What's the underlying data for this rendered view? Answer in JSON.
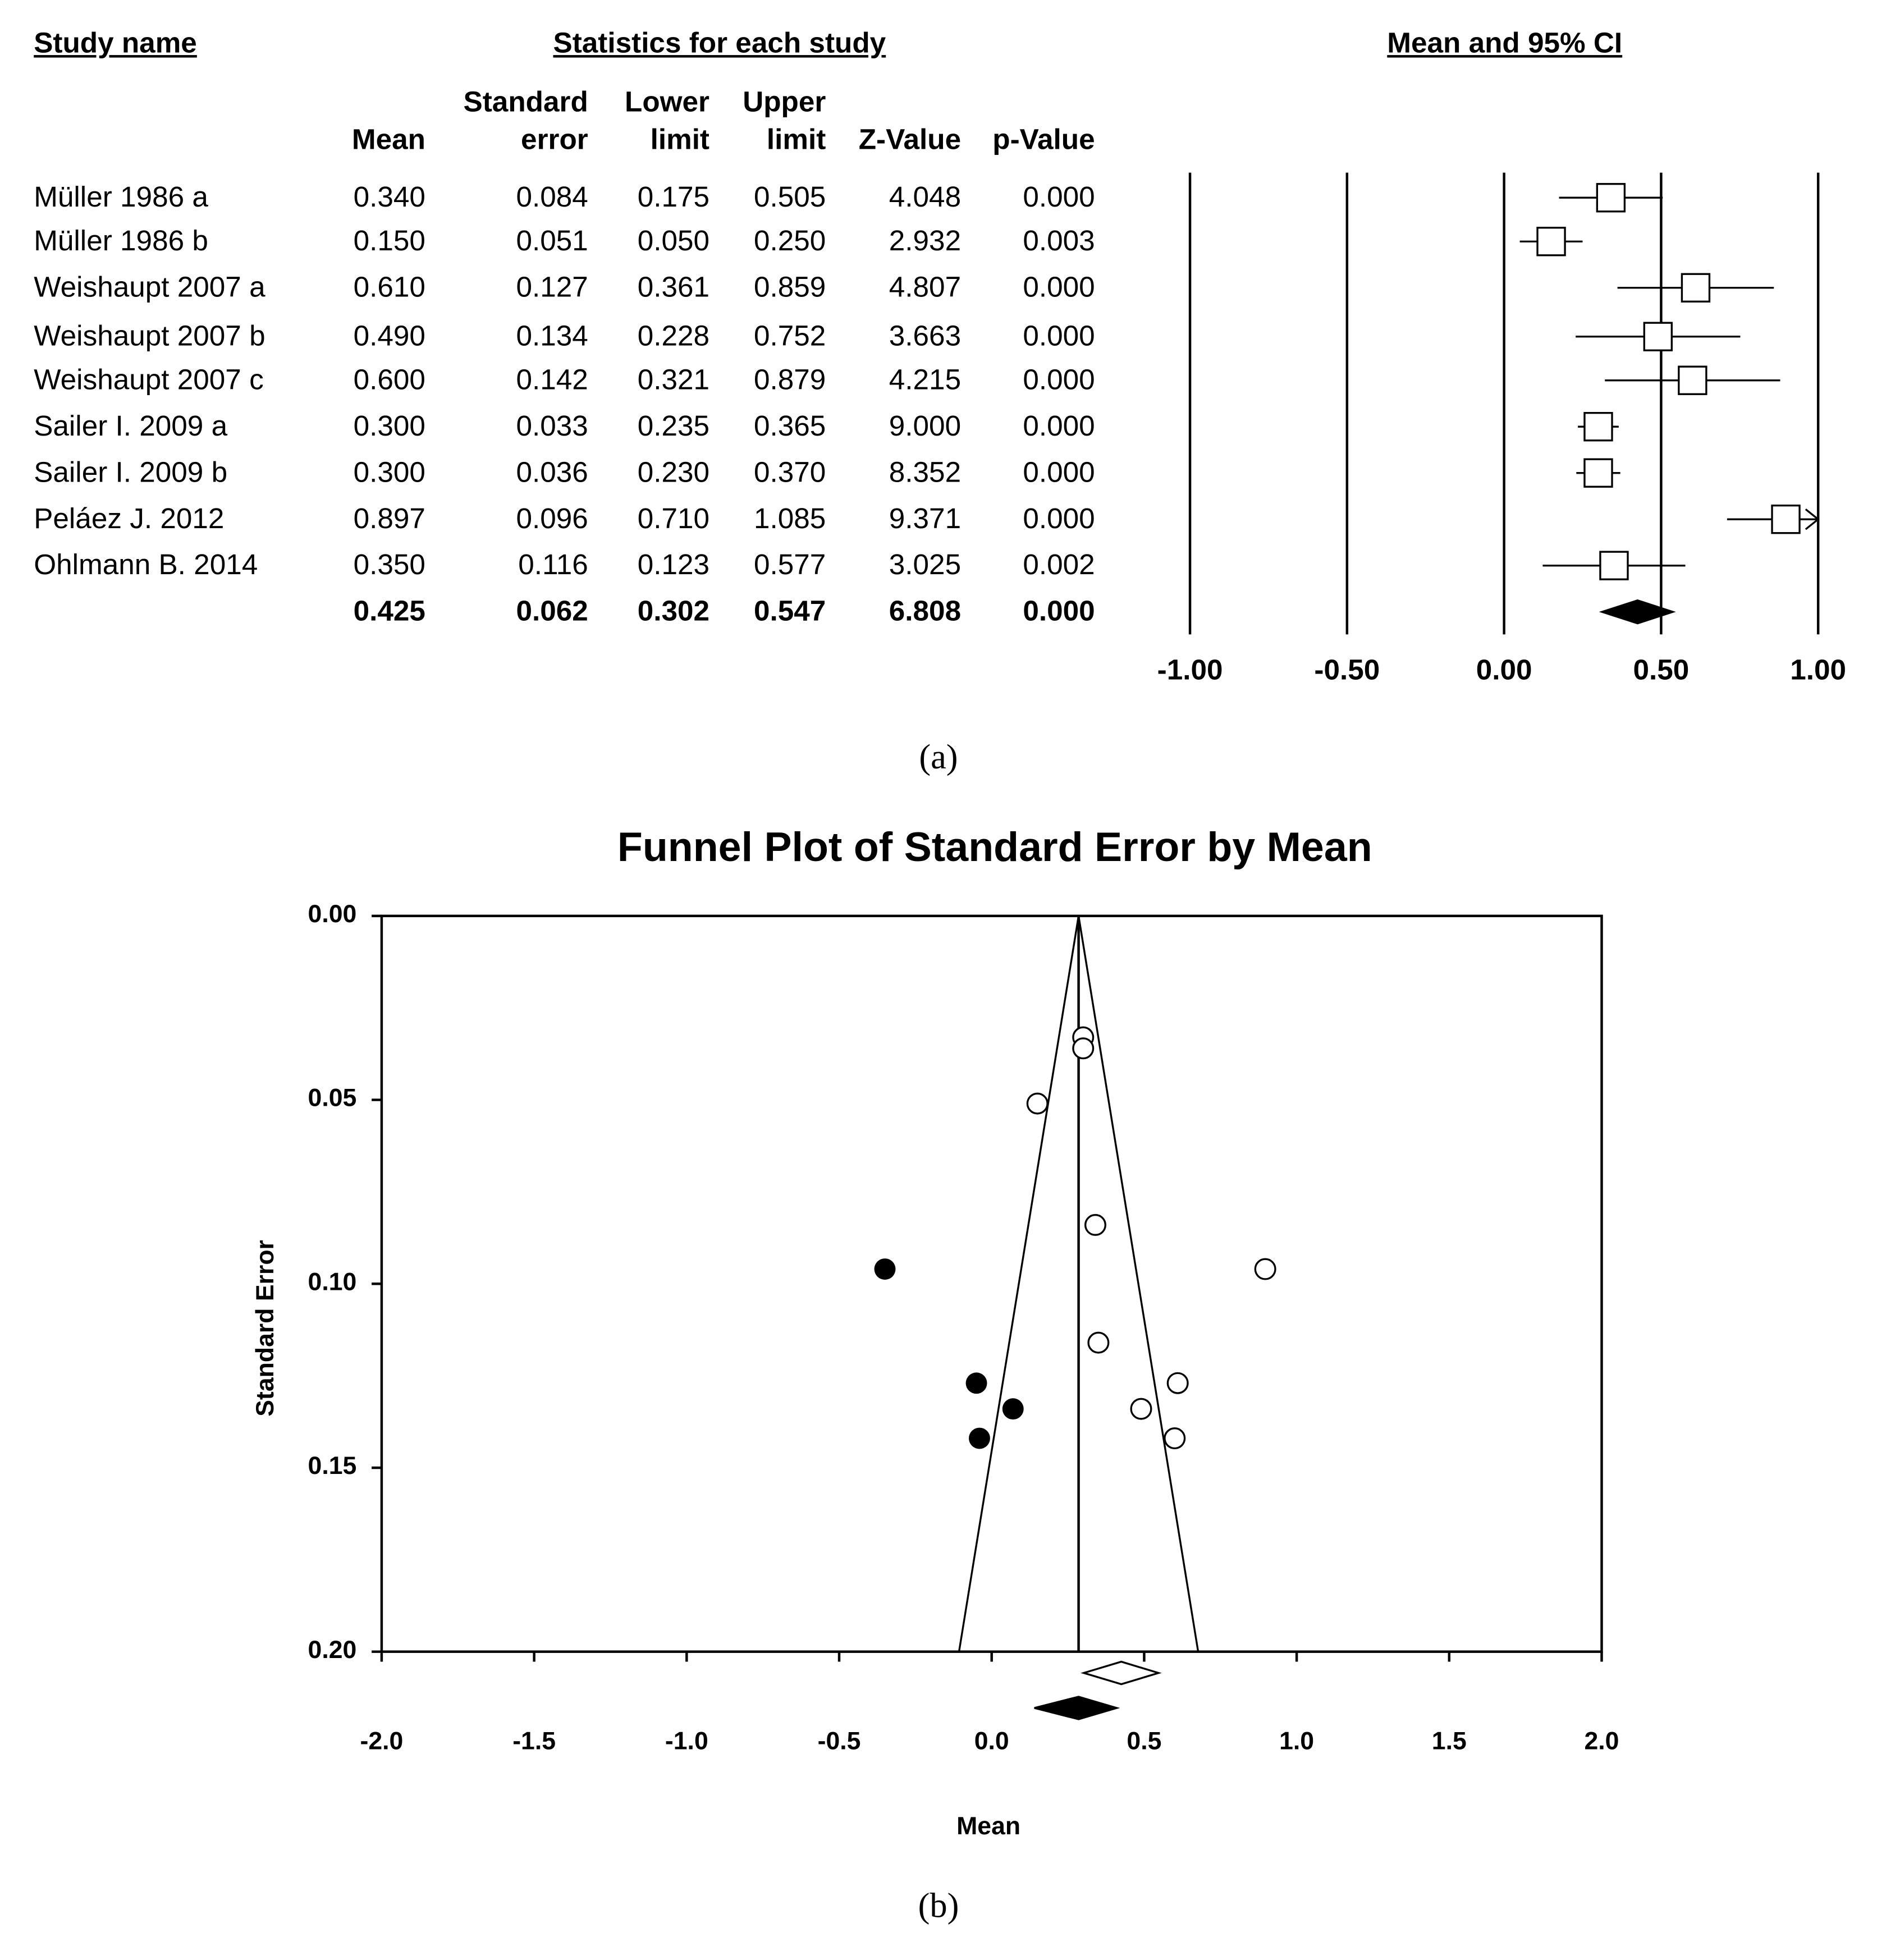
{
  "forest": {
    "headers": {
      "study": "Study name",
      "stats": "Statistics for each study",
      "ci": "Mean and 95% CI"
    },
    "columns": [
      {
        "top": "",
        "bottom": "Mean"
      },
      {
        "top": "Standard",
        "bottom": "error"
      },
      {
        "top": "Lower",
        "bottom": "limit"
      },
      {
        "top": "Upper",
        "bottom": "limit"
      },
      {
        "top": "",
        "bottom": "Z-Value"
      },
      {
        "top": "",
        "bottom": "p-Value"
      }
    ],
    "rows": [
      {
        "name": "Müller 1986 a",
        "vals": [
          "0.340",
          "0.084",
          "0.175",
          "0.505",
          "4.048",
          "0.000"
        ]
      },
      {
        "name": "Müller 1986 b",
        "vals": [
          "0.150",
          "0.051",
          "0.050",
          "0.250",
          "2.932",
          "0.003"
        ]
      },
      {
        "name": "Weishaupt 2007 a",
        "vals": [
          "0.610",
          "0.127",
          "0.361",
          "0.859",
          "4.807",
          "0.000"
        ]
      },
      {
        "name": "Weishaupt 2007 b",
        "vals": [
          "0.490",
          "0.134",
          "0.228",
          "0.752",
          "3.663",
          "0.000"
        ]
      },
      {
        "name": "Weishaupt 2007 c",
        "vals": [
          "0.600",
          "0.142",
          "0.321",
          "0.879",
          "4.215",
          "0.000"
        ]
      },
      {
        "name": "Sailer I. 2009 a",
        "vals": [
          "0.300",
          "0.033",
          "0.235",
          "0.365",
          "9.000",
          "0.000"
        ]
      },
      {
        "name": "Sailer I. 2009 b",
        "vals": [
          "0.300",
          "0.036",
          "0.230",
          "0.370",
          "8.352",
          "0.000"
        ]
      },
      {
        "name": "Peláez J. 2012",
        "vals": [
          "0.897",
          "0.096",
          "0.710",
          "1.085",
          "9.371",
          "0.000"
        ]
      },
      {
        "name": "Ohlmann B. 2014",
        "vals": [
          "0.350",
          "0.116",
          "0.123",
          "0.577",
          "3.025",
          "0.002"
        ]
      }
    ],
    "summary": {
      "name": "",
      "vals": [
        "0.425",
        "0.062",
        "0.302",
        "0.547",
        "6.808",
        "0.000"
      ]
    },
    "caption": "(a)"
  },
  "chart_data": [
    {
      "type": "forest",
      "title": "Mean and 95% CI",
      "xlim": [
        -1.0,
        1.0
      ],
      "xticks": [
        "-1.00",
        "-0.50",
        "0.00",
        "0.50",
        "1.00"
      ],
      "points": [
        {
          "mean": 0.34,
          "lower": 0.175,
          "upper": 0.505
        },
        {
          "mean": 0.15,
          "lower": 0.05,
          "upper": 0.25
        },
        {
          "mean": 0.61,
          "lower": 0.361,
          "upper": 0.859
        },
        {
          "mean": 0.49,
          "lower": 0.228,
          "upper": 0.752
        },
        {
          "mean": 0.6,
          "lower": 0.321,
          "upper": 0.879
        },
        {
          "mean": 0.3,
          "lower": 0.235,
          "upper": 0.365
        },
        {
          "mean": 0.3,
          "lower": 0.23,
          "upper": 0.37
        },
        {
          "mean": 0.897,
          "lower": 0.71,
          "upper": 1.085
        },
        {
          "mean": 0.35,
          "lower": 0.123,
          "upper": 0.577
        }
      ],
      "summary": {
        "mean": 0.425,
        "lower": 0.302,
        "upper": 0.547
      }
    },
    {
      "type": "scatter",
      "title": "Funnel Plot of Standard Error by Mean",
      "xlabel": "Mean",
      "ylabel": "Standard Error",
      "xlim": [
        -2.0,
        2.0
      ],
      "ylim": [
        0.0,
        0.2
      ],
      "y_inverted": true,
      "xticks": [
        "-2.0",
        "-1.5",
        "-1.0",
        "-0.5",
        "0.0",
        "0.5",
        "1.0",
        "1.5",
        "2.0"
      ],
      "yticks": [
        "0.00",
        "0.05",
        "0.10",
        "0.15",
        "0.20"
      ],
      "observed": [
        [
          0.34,
          0.084
        ],
        [
          0.15,
          0.051
        ],
        [
          0.61,
          0.127
        ],
        [
          0.49,
          0.134
        ],
        [
          0.6,
          0.142
        ],
        [
          0.3,
          0.033
        ],
        [
          0.3,
          0.036
        ],
        [
          0.897,
          0.096
        ],
        [
          0.35,
          0.116
        ]
      ],
      "imputed": [
        [
          -0.35,
          0.096
        ],
        [
          -0.05,
          0.127
        ],
        [
          0.07,
          0.134
        ],
        [
          -0.04,
          0.142
        ]
      ],
      "funnel_center": 0.285,
      "observed_diamond": {
        "mean": 0.425,
        "lower": 0.302,
        "upper": 0.547
      },
      "adjusted_diamond": {
        "mean": 0.285,
        "lower": 0.14,
        "upper": 0.41
      },
      "caption": "(b)"
    }
  ]
}
